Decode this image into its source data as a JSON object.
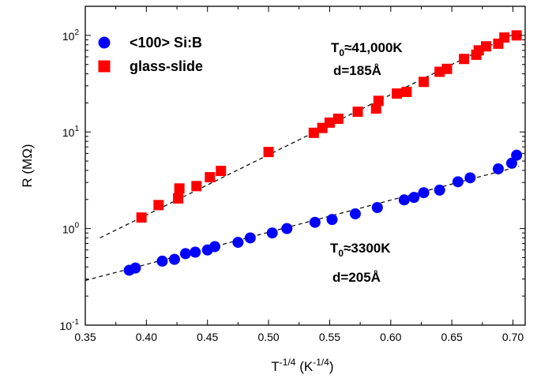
{
  "chart_data": {
    "type": "scatter",
    "xlabel": "T",
    "xlabel_sup": "-1/4",
    "xlabel_unit_open": " (K",
    "xlabel_unit_sup": "-1/4",
    "xlabel_unit_close": ")",
    "ylabel": "R (MΩ)",
    "xlim": [
      0.35,
      0.71
    ],
    "ylim": [
      0.1,
      200
    ],
    "yscale": "log",
    "x_ticks": [
      "0.35",
      "0.40",
      "0.45",
      "0.50",
      "0.55",
      "0.60",
      "0.65",
      "0.70"
    ],
    "y_ticks": [
      {
        "base": "10",
        "exp": "-1"
      },
      {
        "base": "10",
        "exp": "0"
      },
      {
        "base": "10",
        "exp": "1"
      },
      {
        "base": "10",
        "exp": "2"
      }
    ],
    "legend_position": "top-left",
    "series": [
      {
        "name": "<100> Si:B",
        "marker": "circle",
        "color": "#0000ff",
        "x": [
          0.386,
          0.391,
          0.413,
          0.423,
          0.432,
          0.44,
          0.45,
          0.456,
          0.475,
          0.485,
          0.503,
          0.515,
          0.538,
          0.552,
          0.571,
          0.589,
          0.611,
          0.619,
          0.627,
          0.64,
          0.655,
          0.665,
          0.688,
          0.699,
          0.703
        ],
        "values": [
          0.37,
          0.39,
          0.46,
          0.48,
          0.55,
          0.57,
          0.6,
          0.65,
          0.72,
          0.8,
          0.9,
          1.0,
          1.16,
          1.24,
          1.42,
          1.65,
          1.98,
          2.1,
          2.35,
          2.5,
          3.05,
          3.35,
          4.15,
          4.75,
          5.75
        ]
      },
      {
        "name": "glass-slide",
        "marker": "square",
        "color": "#ff0000",
        "x": [
          0.396,
          0.41,
          0.426,
          0.427,
          0.441,
          0.452,
          0.461,
          0.5,
          0.537,
          0.544,
          0.55,
          0.557,
          0.573,
          0.588,
          0.59,
          0.605,
          0.613,
          0.627,
          0.64,
          0.646,
          0.66,
          0.67,
          0.672,
          0.678,
          0.688,
          0.693,
          0.703
        ],
        "values": [
          1.3,
          1.75,
          2.05,
          2.6,
          2.75,
          3.4,
          3.95,
          6.2,
          9.8,
          11.0,
          12.5,
          13.7,
          16.2,
          17.5,
          21.0,
          25.0,
          26.0,
          33.0,
          42.0,
          45.0,
          57.0,
          63.0,
          70.0,
          77.0,
          82.0,
          95.0,
          100.0
        ]
      }
    ],
    "fits": [
      {
        "series": "<100> Si:B",
        "x": [
          0.35,
          0.705
        ],
        "values": [
          0.29,
          4.4
        ]
      },
      {
        "series": "glass-slide",
        "x": [
          0.362,
          0.705
        ],
        "values": [
          0.8,
          110.0
        ]
      }
    ],
    "annotations": [
      {
        "id": "glass",
        "lead": "T",
        "sub": "0",
        "rest": "≈41,000K",
        "line2": "d=185Å"
      },
      {
        "id": "si",
        "lead": "T",
        "sub": "0",
        "rest": "≈3300K",
        "line2": "d=205Å"
      }
    ]
  }
}
